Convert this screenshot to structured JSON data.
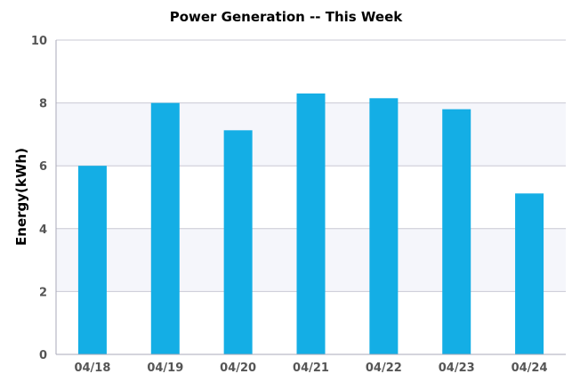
{
  "chart_data": {
    "type": "bar",
    "title": "Power Generation -- This Week",
    "xlabel": "",
    "ylabel": "Energy(kWh)",
    "categories": [
      "04/18",
      "04/19",
      "04/20",
      "04/21",
      "04/22",
      "04/23",
      "04/24"
    ],
    "values": [
      6.0,
      8.0,
      7.13,
      8.3,
      8.15,
      7.8,
      5.12
    ],
    "ylim": [
      0,
      10
    ],
    "yticks": [
      "0",
      "2",
      "4",
      "6",
      "8",
      "10"
    ],
    "grid": true,
    "legend": "none",
    "colors": {
      "bar": "#14aee5",
      "band": "#f5f6fb",
      "grid": "#c9c9d4",
      "axis": "#aaaab8"
    }
  }
}
